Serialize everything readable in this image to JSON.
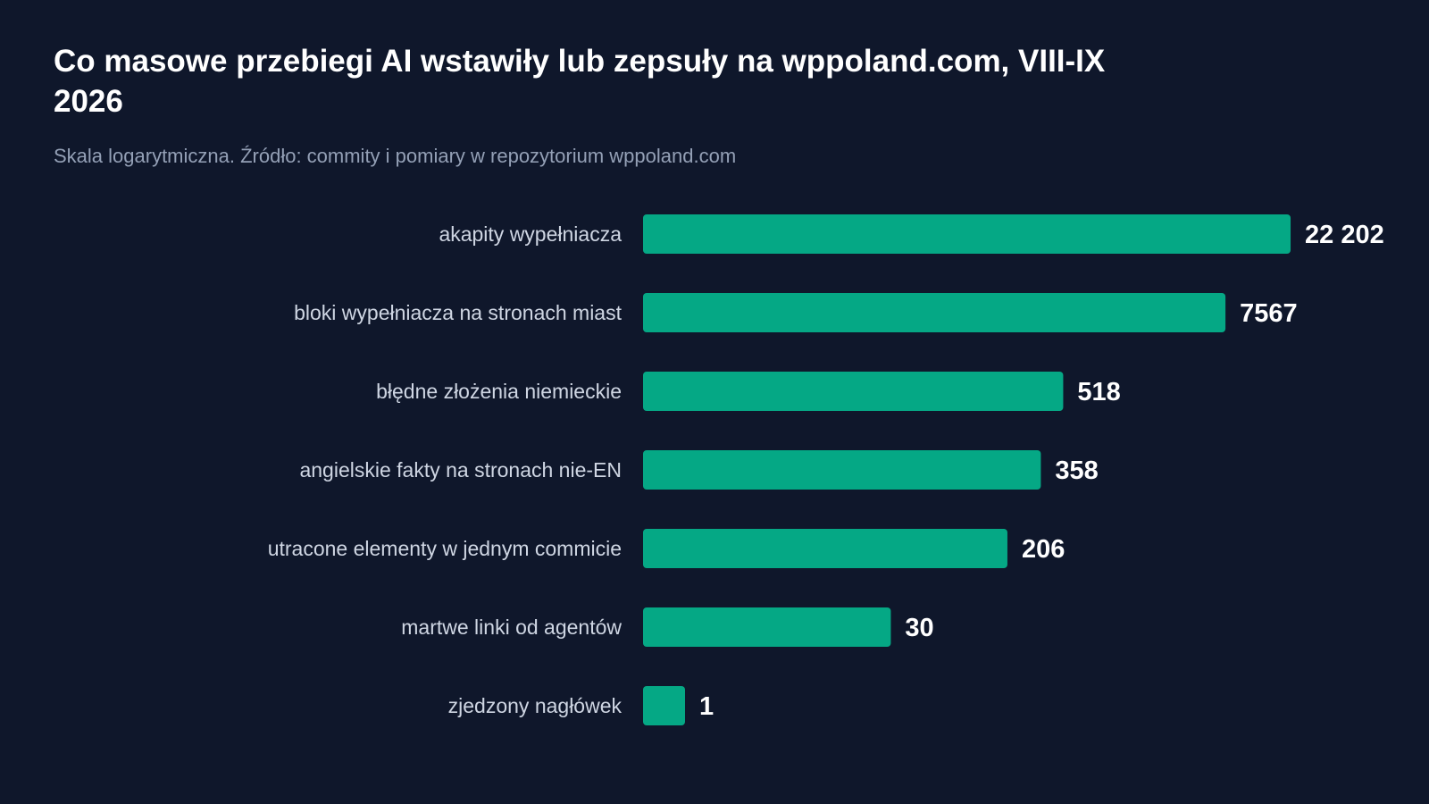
{
  "chart_data": {
    "type": "bar",
    "orientation": "horizontal",
    "title": "Co masowe przebiegi AI wstawiły lub zepsuły na wppoland.com, VIII-IX 2026",
    "subtitle": "Skala logarytmiczna. Źródło: commity i pomiary w repozytorium wppoland.com",
    "scale": "log",
    "categories": [
      "akapity wypełniacza",
      "bloki wypełniacza na stronach miast",
      "błędne złożenia niemieckie",
      "angielskie fakty na stronach nie-EN",
      "utracone elementy w jednym commicie",
      "martwe linki od agentów",
      "zjedzony nagłówek"
    ],
    "values": [
      22202,
      7567,
      518,
      358,
      206,
      30,
      1
    ],
    "value_labels": [
      "22 202",
      "7567",
      "518",
      "358",
      "206",
      "30",
      "1"
    ],
    "bar_color": "#05a885",
    "grid": false,
    "legend": "none"
  }
}
